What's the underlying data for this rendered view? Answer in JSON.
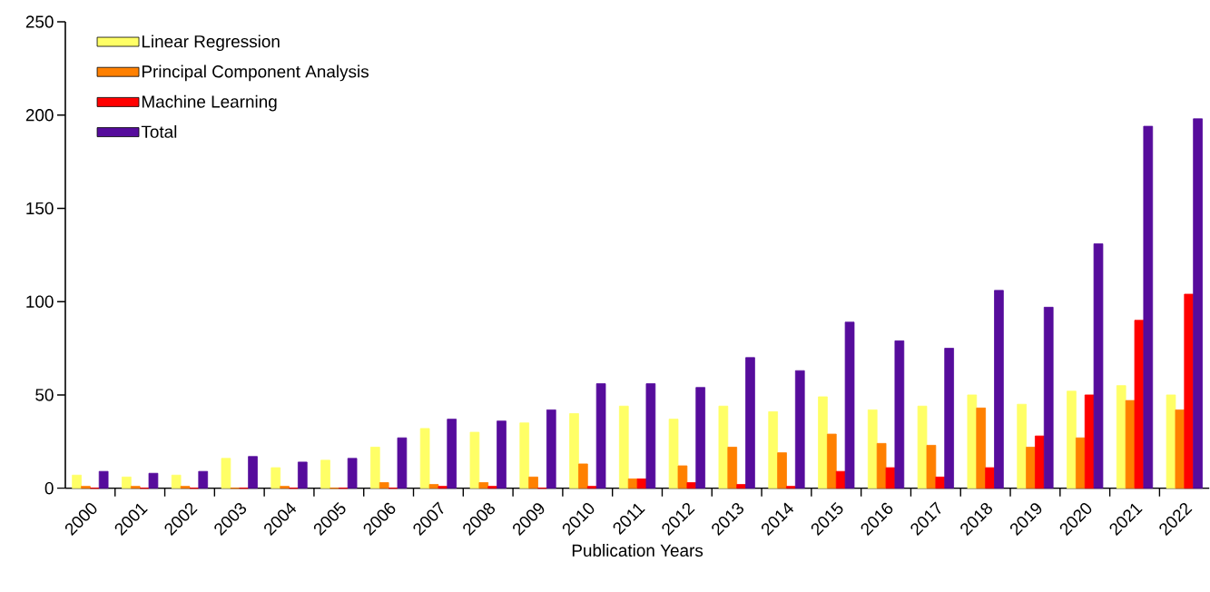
{
  "chart_data": {
    "type": "bar",
    "xlabel": "Publication Years",
    "categories": [
      "2000",
      "2001",
      "2002",
      "2003",
      "2004",
      "2005",
      "2006",
      "2007",
      "2008",
      "2009",
      "2010",
      "2011",
      "2012",
      "2013",
      "2014",
      "2015",
      "2016",
      "2017",
      "2018",
      "2019",
      "2020",
      "2021",
      "2022"
    ],
    "series": [
      {
        "name": "Linear Regression",
        "color": "#ffff66",
        "values": [
          7,
          6,
          7,
          16,
          11,
          15,
          22,
          32,
          30,
          35,
          40,
          44,
          37,
          44,
          41,
          49,
          42,
          44,
          50,
          45,
          52,
          55,
          50
        ]
      },
      {
        "name": "Principal Component Analysis",
        "color": "#ff8000",
        "values": [
          1,
          1,
          1,
          0,
          1,
          0,
          3,
          2,
          3,
          6,
          13,
          5,
          12,
          22,
          19,
          29,
          24,
          23,
          43,
          22,
          27,
          47,
          42
        ]
      },
      {
        "name": "Machine Learning",
        "color": "#ff0000",
        "values": [
          0,
          0,
          0,
          0,
          0,
          0,
          0,
          1,
          1,
          0,
          1,
          5,
          3,
          2,
          1,
          9,
          11,
          6,
          11,
          28,
          50,
          90,
          104
        ]
      },
      {
        "name": "Total",
        "color": "#560c9c",
        "values": [
          9,
          8,
          9,
          17,
          14,
          16,
          27,
          37,
          36,
          42,
          56,
          56,
          54,
          70,
          63,
          89,
          79,
          75,
          106,
          97,
          131,
          194,
          198
        ]
      }
    ],
    "ylim": [
      0,
      250
    ],
    "yticks": [
      0,
      50,
      100,
      150,
      200,
      250
    ],
    "grid": false,
    "legend": "top left"
  }
}
